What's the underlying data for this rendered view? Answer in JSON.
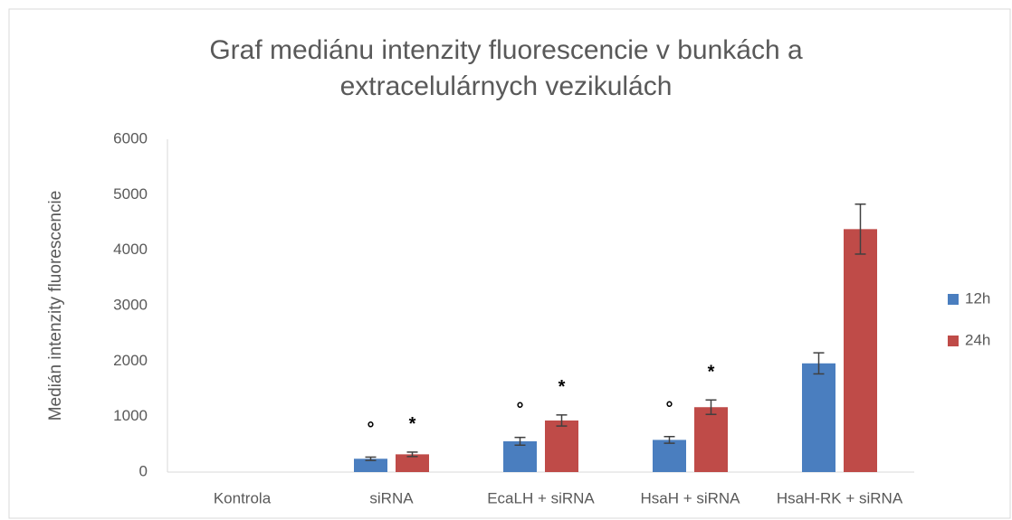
{
  "chart_data": {
    "type": "bar",
    "title": "Graf mediánu intenzity fluorescencie v bunkách a extracelulárnych vezikulách",
    "y_label": "Medián intenzity fluorescencie",
    "categories": [
      "Kontrola",
      "siRNA",
      "EcaLH + siRNA",
      "HsaH + siRNA",
      "HsaH-RK + siRNA"
    ],
    "series": [
      {
        "name": "12h",
        "color": "#4a7ebf",
        "values": [
          0,
          240,
          555,
          580,
          1960
        ],
        "errors": [
          null,
          30,
          70,
          60,
          190
        ],
        "annotations": [
          null,
          "°",
          "°",
          "°",
          null
        ]
      },
      {
        "name": "24h",
        "color": "#bf4b48",
        "values": [
          0,
          320,
          930,
          1170,
          4380
        ],
        "errors": [
          null,
          40,
          100,
          130,
          450
        ],
        "annotations": [
          null,
          "*",
          "*",
          "*",
          null
        ]
      }
    ],
    "ylim": [
      0,
      6000
    ],
    "yticks": [
      0,
      1000,
      2000,
      3000,
      4000,
      5000,
      6000
    ],
    "grid": false,
    "legend": "right"
  }
}
